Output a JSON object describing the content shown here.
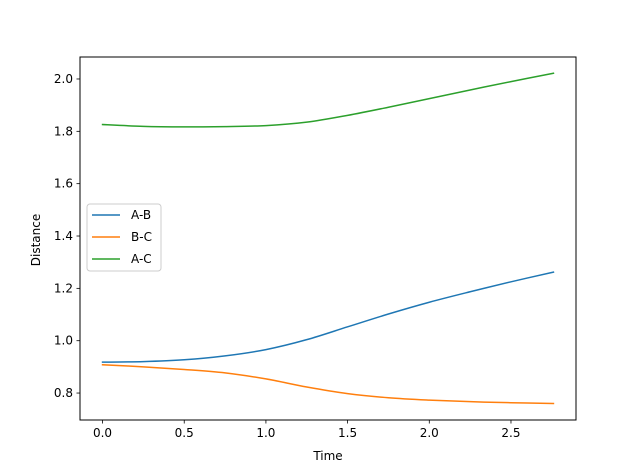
{
  "chart_data": {
    "type": "line",
    "title": "",
    "xlabel": "Time",
    "ylabel": "Distance",
    "xlim": [
      -0.138,
      2.898
    ],
    "ylim": [
      0.697,
      2.084
    ],
    "xticks": [
      0.0,
      0.5,
      1.0,
      1.5,
      2.0,
      2.5
    ],
    "xtick_labels": [
      "0.0",
      "0.5",
      "1.0",
      "1.5",
      "2.0",
      "2.5"
    ],
    "yticks": [
      0.8,
      1.0,
      1.2,
      1.4,
      1.6,
      1.8,
      2.0
    ],
    "ytick_labels": [
      "0.8",
      "1.0",
      "1.2",
      "1.4",
      "1.6",
      "1.8",
      "2.0"
    ],
    "grid": false,
    "legend_position": "center-left",
    "x": [
      0.0,
      0.25,
      0.5,
      0.75,
      1.0,
      1.25,
      1.5,
      1.75,
      2.0,
      2.25,
      2.5,
      2.76
    ],
    "series": [
      {
        "name": "A-B",
        "color": "#1f77b4",
        "values": [
          0.918,
          0.92,
          0.927,
          0.942,
          0.966,
          1.004,
          1.053,
          1.102,
          1.147,
          1.187,
          1.225,
          1.262
        ]
      },
      {
        "name": " B-C",
        "color": "#ff7f0e",
        "values": [
          0.908,
          0.9,
          0.89,
          0.877,
          0.854,
          0.823,
          0.798,
          0.782,
          0.773,
          0.767,
          0.763,
          0.76
        ]
      },
      {
        "name": "A-C",
        "color": "#2ca02c",
        "values": [
          1.826,
          1.819,
          1.817,
          1.818,
          1.822,
          1.835,
          1.861,
          1.892,
          1.925,
          1.958,
          1.99,
          2.022
        ]
      }
    ]
  }
}
